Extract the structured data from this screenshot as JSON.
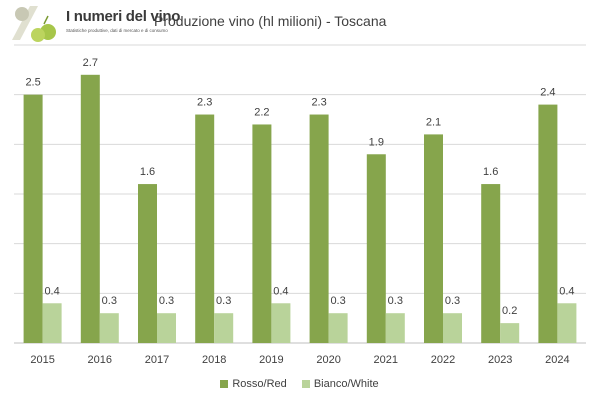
{
  "logo": {
    "name": "I numeri del vino",
    "tagline": "Statistiche produttive, dati di mercato e di consumo"
  },
  "chart_data": {
    "type": "bar",
    "title": "Produzione vino (hl milioni) - Toscana",
    "xlabel": "",
    "ylabel": "",
    "ylim": [
      0,
      3.0
    ],
    "grid": true,
    "legend_position": "bottom",
    "categories": [
      "2015",
      "2016",
      "2017",
      "2018",
      "2019",
      "2020",
      "2021",
      "2022",
      "2023",
      "2024"
    ],
    "series": [
      {
        "name": "Rosso/Red",
        "color": "#86a54c",
        "values": [
          2.5,
          2.7,
          1.6,
          2.3,
          2.2,
          2.3,
          1.9,
          2.1,
          1.6,
          2.4
        ],
        "labels": [
          "2.5",
          "2.7",
          "1.6",
          "2.3",
          "2.2",
          "2.3",
          "1.9",
          "2.1",
          "1.6",
          "2.4"
        ]
      },
      {
        "name": "Bianco/White",
        "color": "#b9d39a",
        "values": [
          0.4,
          0.3,
          0.3,
          0.3,
          0.4,
          0.3,
          0.3,
          0.3,
          0.2,
          0.4
        ],
        "labels": [
          "0.4",
          "0.3",
          "0.3",
          "0.3",
          "0.4",
          "0.3",
          "0.3",
          "0.3",
          "0.2",
          "0.4"
        ]
      }
    ]
  }
}
